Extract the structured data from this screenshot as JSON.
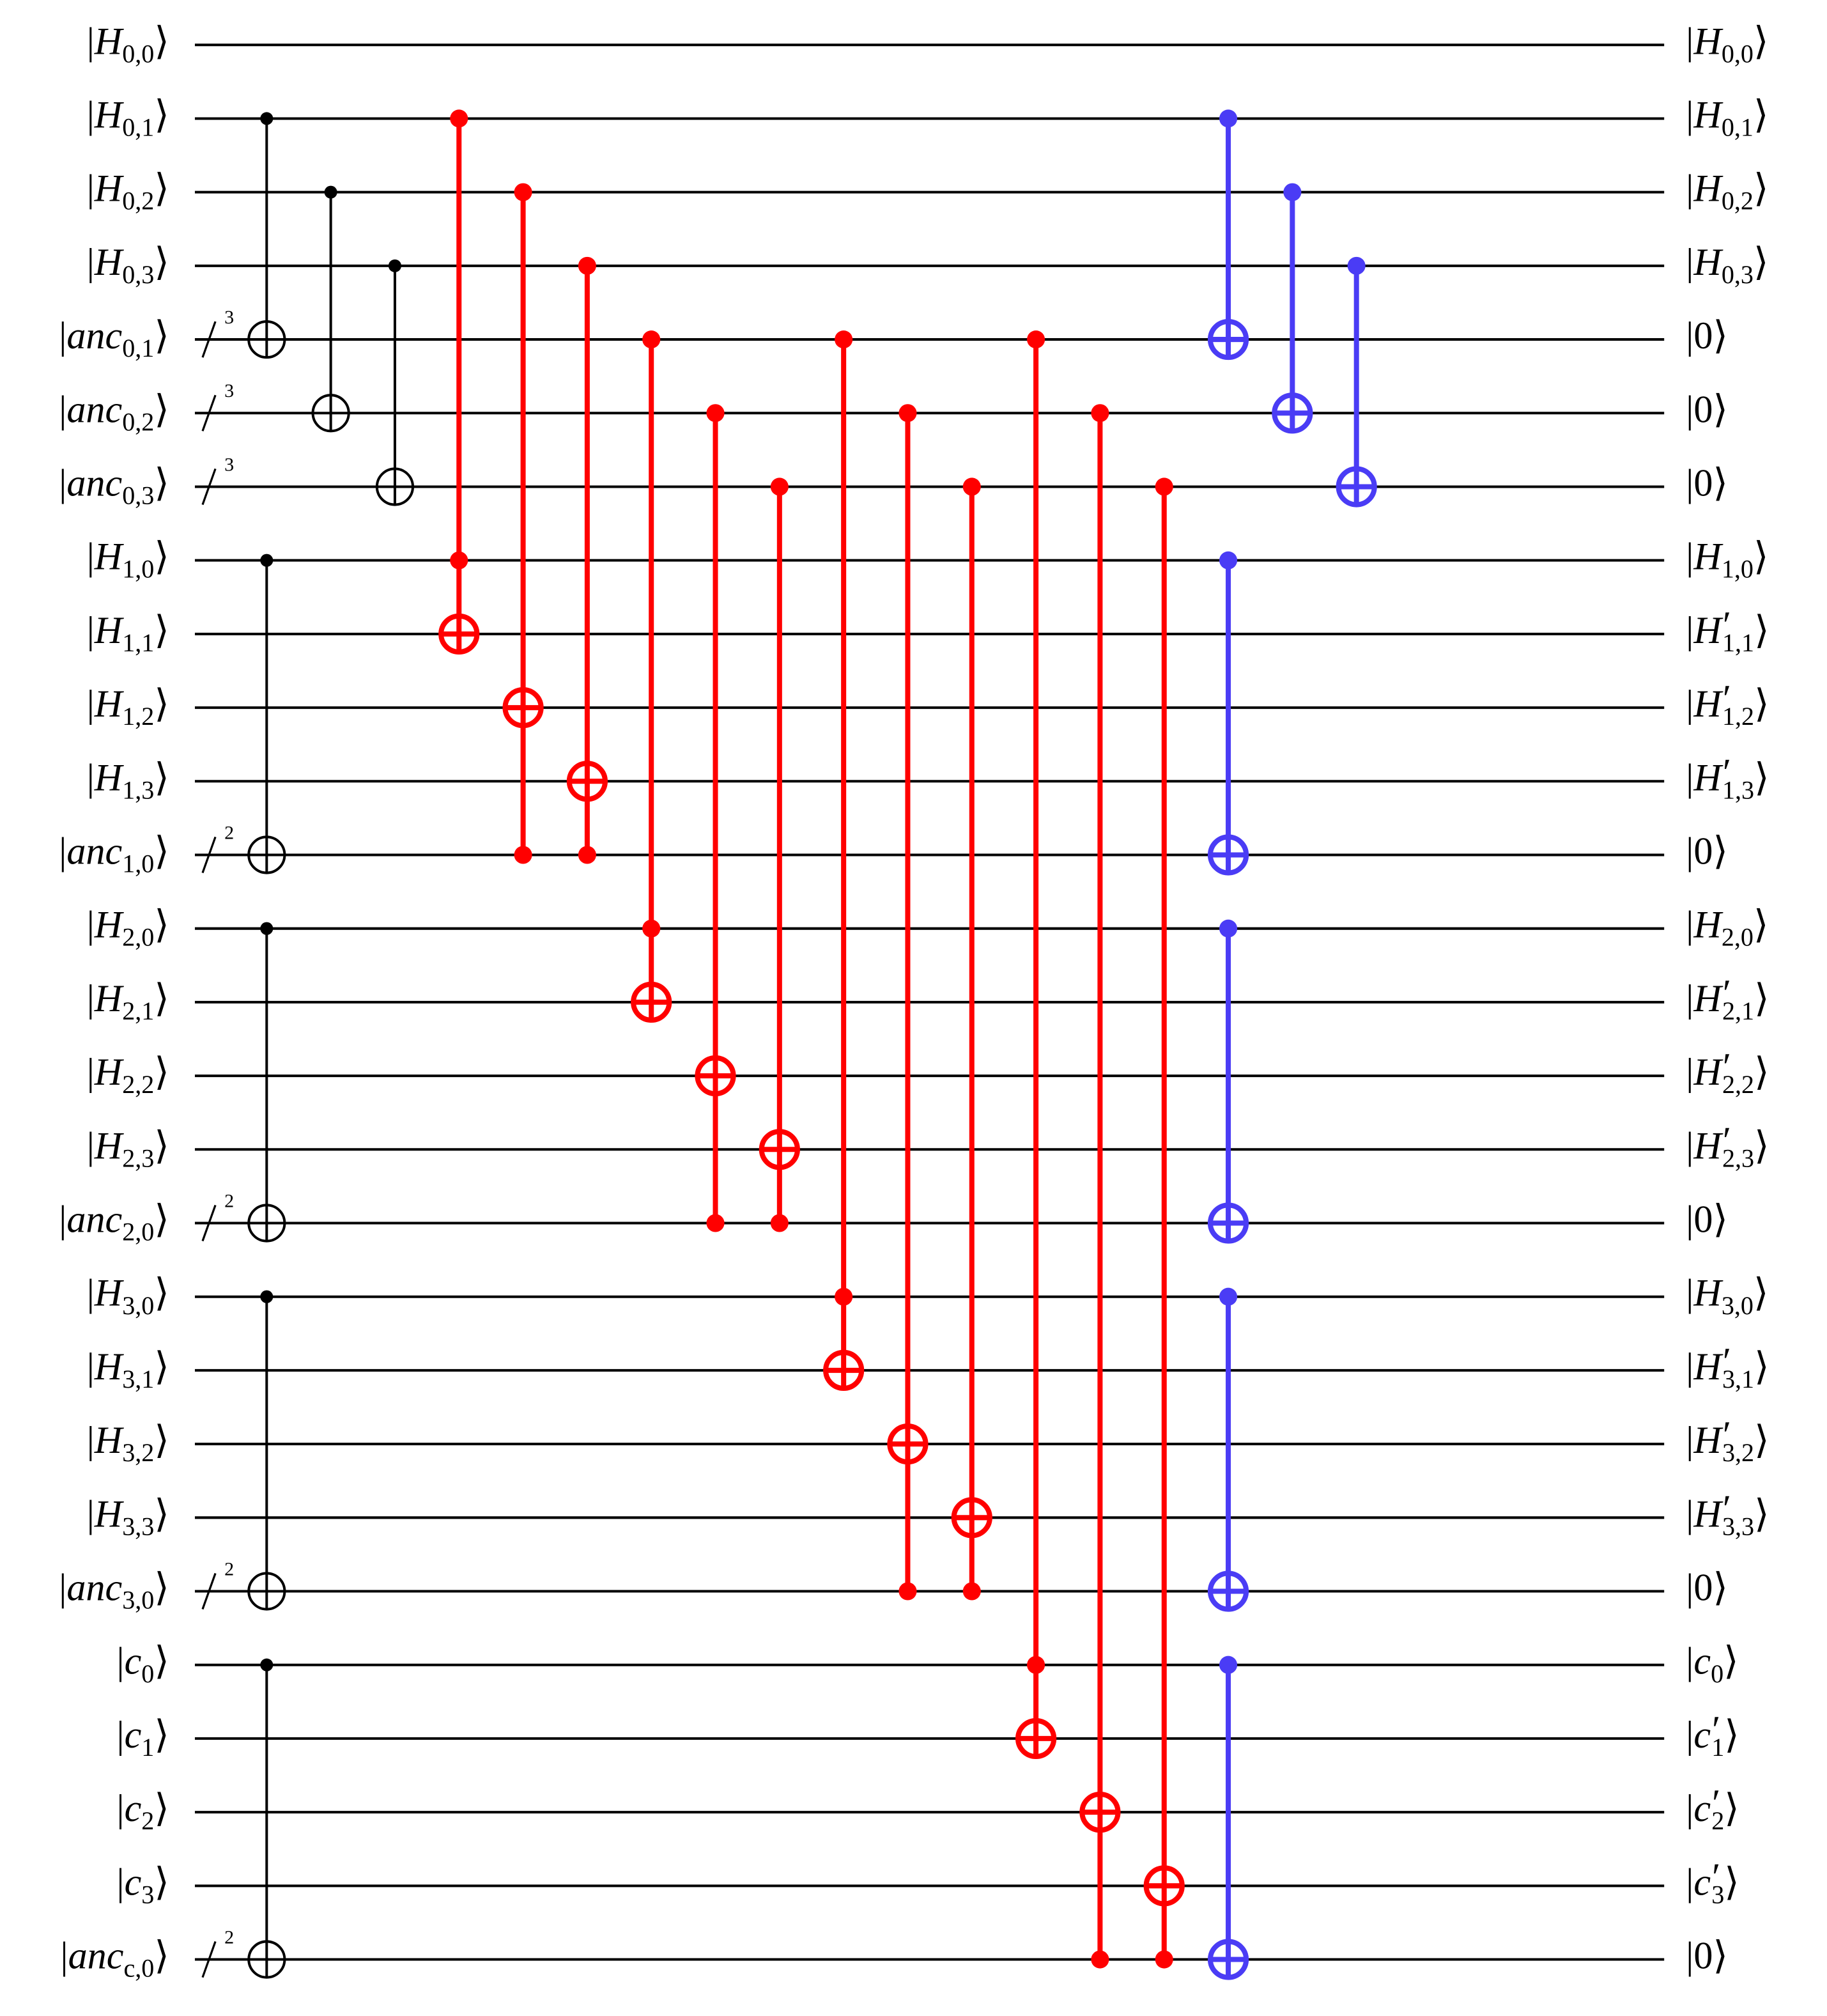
{
  "ket": {
    "open": "|",
    "close": "⟩"
  },
  "wires": [
    {
      "in": {
        "name": "H",
        "sub": "0,0"
      },
      "out": {
        "name": "H",
        "sub": "0,0"
      }
    },
    {
      "in": {
        "name": "H",
        "sub": "0,1"
      },
      "out": {
        "name": "H",
        "sub": "0,1"
      }
    },
    {
      "in": {
        "name": "H",
        "sub": "0,2"
      },
      "out": {
        "name": "H",
        "sub": "0,2"
      }
    },
    {
      "in": {
        "name": "H",
        "sub": "0,3"
      },
      "out": {
        "name": "H",
        "sub": "0,3"
      }
    },
    {
      "in": {
        "name": "anc",
        "sub": "0,1"
      },
      "out": {
        "name": "0"
      },
      "bundle": "3"
    },
    {
      "in": {
        "name": "anc",
        "sub": "0,2"
      },
      "out": {
        "name": "0"
      },
      "bundle": "3"
    },
    {
      "in": {
        "name": "anc",
        "sub": "0,3"
      },
      "out": {
        "name": "0"
      },
      "bundle": "3"
    },
    {
      "in": {
        "name": "H",
        "sub": "1,0"
      },
      "out": {
        "name": "H",
        "sub": "1,0"
      }
    },
    {
      "in": {
        "name": "H",
        "sub": "1,1"
      },
      "out": {
        "name": "H",
        "prime": "′",
        "sub": "1,1"
      }
    },
    {
      "in": {
        "name": "H",
        "sub": "1,2"
      },
      "out": {
        "name": "H",
        "prime": "′",
        "sub": "1,2"
      }
    },
    {
      "in": {
        "name": "H",
        "sub": "1,3"
      },
      "out": {
        "name": "H",
        "prime": "′",
        "sub": "1,3"
      }
    },
    {
      "in": {
        "name": "anc",
        "sub": "1,0"
      },
      "out": {
        "name": "0"
      },
      "bundle": "2"
    },
    {
      "in": {
        "name": "H",
        "sub": "2,0"
      },
      "out": {
        "name": "H",
        "sub": "2,0"
      }
    },
    {
      "in": {
        "name": "H",
        "sub": "2,1"
      },
      "out": {
        "name": "H",
        "prime": "′",
        "sub": "2,1"
      }
    },
    {
      "in": {
        "name": "H",
        "sub": "2,2"
      },
      "out": {
        "name": "H",
        "prime": "′",
        "sub": "2,2"
      }
    },
    {
      "in": {
        "name": "H",
        "sub": "2,3"
      },
      "out": {
        "name": "H",
        "prime": "′",
        "sub": "2,3"
      }
    },
    {
      "in": {
        "name": "anc",
        "sub": "2,0"
      },
      "out": {
        "name": "0"
      },
      "bundle": "2"
    },
    {
      "in": {
        "name": "H",
        "sub": "3,0"
      },
      "out": {
        "name": "H",
        "sub": "3,0"
      }
    },
    {
      "in": {
        "name": "H",
        "sub": "3,1"
      },
      "out": {
        "name": "H",
        "prime": "′",
        "sub": "3,1"
      }
    },
    {
      "in": {
        "name": "H",
        "sub": "3,2"
      },
      "out": {
        "name": "H",
        "prime": "′",
        "sub": "3,2"
      }
    },
    {
      "in": {
        "name": "H",
        "sub": "3,3"
      },
      "out": {
        "name": "H",
        "prime": "′",
        "sub": "3,3"
      }
    },
    {
      "in": {
        "name": "anc",
        "sub": "3,0"
      },
      "out": {
        "name": "0"
      },
      "bundle": "2"
    },
    {
      "in": {
        "name": "c",
        "sub": "0"
      },
      "out": {
        "name": "c",
        "sub": "0"
      }
    },
    {
      "in": {
        "name": "c",
        "sub": "1"
      },
      "out": {
        "name": "c",
        "prime": "′",
        "sub": "1"
      }
    },
    {
      "in": {
        "name": "c",
        "sub": "2"
      },
      "out": {
        "name": "c",
        "prime": "′",
        "sub": "2"
      }
    },
    {
      "in": {
        "name": "c",
        "sub": "3"
      },
      "out": {
        "name": "c",
        "prime": "′",
        "sub": "3"
      }
    },
    {
      "in": {
        "name": "anc",
        "sub": "c,0"
      },
      "out": {
        "name": "0"
      },
      "bundle": "2"
    }
  ],
  "moments": [
    {
      "color": "#000000",
      "gates": [
        {
          "controls": [
            1
          ],
          "target": 4
        },
        {
          "controls": [
            7
          ],
          "target": 11
        },
        {
          "controls": [
            12
          ],
          "target": 16
        },
        {
          "controls": [
            17
          ],
          "target": 21
        },
        {
          "controls": [
            22
          ],
          "target": 26
        }
      ]
    },
    {
      "color": "#000000",
      "gates": [
        {
          "controls": [
            2
          ],
          "target": 5
        }
      ]
    },
    {
      "color": "#000000",
      "gates": [
        {
          "controls": [
            3
          ],
          "target": 6
        }
      ]
    },
    {
      "color": "#ff0000",
      "gates": [
        {
          "controls": [
            1,
            7
          ],
          "target": 8
        }
      ]
    },
    {
      "color": "#ff0000",
      "gates": [
        {
          "controls": [
            2,
            11
          ],
          "target": 9
        }
      ]
    },
    {
      "color": "#ff0000",
      "gates": [
        {
          "controls": [
            3,
            11
          ],
          "target": 10
        }
      ]
    },
    {
      "color": "#ff0000",
      "gates": [
        {
          "controls": [
            4,
            12
          ],
          "target": 13
        }
      ]
    },
    {
      "color": "#ff0000",
      "gates": [
        {
          "controls": [
            5,
            16
          ],
          "target": 14
        }
      ]
    },
    {
      "color": "#ff0000",
      "gates": [
        {
          "controls": [
            6,
            16
          ],
          "target": 15
        }
      ]
    },
    {
      "color": "#ff0000",
      "gates": [
        {
          "controls": [
            4,
            17
          ],
          "target": 18
        }
      ]
    },
    {
      "color": "#ff0000",
      "gates": [
        {
          "controls": [
            5,
            21
          ],
          "target": 19
        }
      ]
    },
    {
      "color": "#ff0000",
      "gates": [
        {
          "controls": [
            6,
            21
          ],
          "target": 20
        }
      ]
    },
    {
      "color": "#ff0000",
      "gates": [
        {
          "controls": [
            4,
            22
          ],
          "target": 23
        }
      ]
    },
    {
      "color": "#ff0000",
      "gates": [
        {
          "controls": [
            5,
            26
          ],
          "target": 24
        }
      ]
    },
    {
      "color": "#ff0000",
      "gates": [
        {
          "controls": [
            6,
            26
          ],
          "target": 25
        }
      ]
    },
    {
      "color": "#4a3cf5",
      "gates": [
        {
          "controls": [
            1
          ],
          "target": 4
        },
        {
          "controls": [
            7
          ],
          "target": 11
        },
        {
          "controls": [
            12
          ],
          "target": 16
        },
        {
          "controls": [
            17
          ],
          "target": 21
        },
        {
          "controls": [
            22
          ],
          "target": 26
        }
      ]
    },
    {
      "color": "#4a3cf5",
      "gates": [
        {
          "controls": [
            2
          ],
          "target": 5
        }
      ]
    },
    {
      "color": "#4a3cf5",
      "gates": [
        {
          "controls": [
            3
          ],
          "target": 6
        }
      ]
    }
  ]
}
